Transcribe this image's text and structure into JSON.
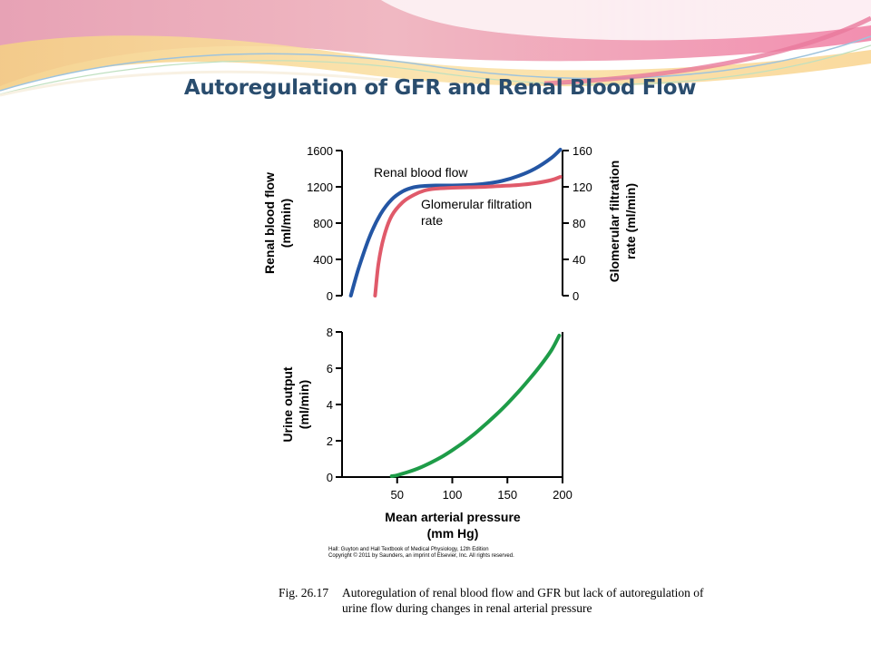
{
  "slide": {
    "title": "Autoregulation of GFR and Renal Blood Flow"
  },
  "figure": {
    "credit_line1": "Hall: Guyton and Hall Textbook of Medical Physiology, 12th Edition",
    "credit_line2": "Copyright © 2011 by Saunders, an imprint of Elsevier, Inc. All rights reserved."
  },
  "caption": {
    "number": "Fig. 26.17",
    "text": "Autoregulation of renal blood flow and GFR but lack of autoregulation of urine flow during changes in renal arterial pressure"
  },
  "chart_data": [
    {
      "type": "line",
      "xlim": [
        0,
        200
      ],
      "ylabel_lines": [
        "Renal blood flow",
        "(ml/min)"
      ],
      "ylim": [
        0,
        1600
      ],
      "yticks": [
        0,
        400,
        800,
        1200,
        1600
      ],
      "y2label_lines": [
        "Glomerular filtration",
        "rate (ml/min)"
      ],
      "y2lim": [
        0,
        160
      ],
      "y2ticks": [
        0,
        40,
        80,
        120,
        160
      ],
      "series": [
        {
          "name": "Renal blood flow",
          "axis": "left",
          "color": "#2456a4",
          "x": [
            8,
            15,
            25,
            35,
            45,
            55,
            65,
            75,
            85,
            100,
            115,
            130,
            145,
            160,
            175,
            190,
            198
          ],
          "y": [
            0,
            300,
            650,
            900,
            1060,
            1150,
            1195,
            1210,
            1215,
            1215,
            1220,
            1235,
            1265,
            1320,
            1400,
            1520,
            1610
          ]
        },
        {
          "name": "Glomerular filtration rate",
          "label_lines": [
            "Glomerular filtration",
            "rate"
          ],
          "axis": "right",
          "color": "#e05a6a",
          "x": [
            30,
            33,
            38,
            45,
            55,
            65,
            75,
            85,
            100,
            115,
            130,
            145,
            160,
            175,
            190,
            198
          ],
          "y": [
            0,
            35,
            65,
            88,
            103,
            111,
            116,
            118,
            119,
            119.5,
            120,
            121,
            122,
            124,
            127.5,
            131
          ]
        }
      ]
    },
    {
      "type": "line",
      "xlim": [
        0,
        200
      ],
      "xticks": [
        50,
        100,
        150,
        200
      ],
      "xlabel_lines": [
        "Mean arterial pressure",
        "(mm Hg)"
      ],
      "ylabel_lines": [
        "Urine output",
        "(ml/min)"
      ],
      "ylim": [
        0,
        8
      ],
      "yticks": [
        0,
        2,
        4,
        6,
        8
      ],
      "series": [
        {
          "color": "#1e9c48",
          "x": [
            45,
            50,
            60,
            70,
            80,
            90,
            100,
            110,
            120,
            130,
            140,
            150,
            160,
            170,
            180,
            190,
            197
          ],
          "y": [
            0.05,
            0.1,
            0.28,
            0.5,
            0.78,
            1.1,
            1.48,
            1.9,
            2.37,
            2.9,
            3.45,
            4.05,
            4.7,
            5.4,
            6.15,
            7.0,
            7.8
          ]
        }
      ]
    }
  ]
}
